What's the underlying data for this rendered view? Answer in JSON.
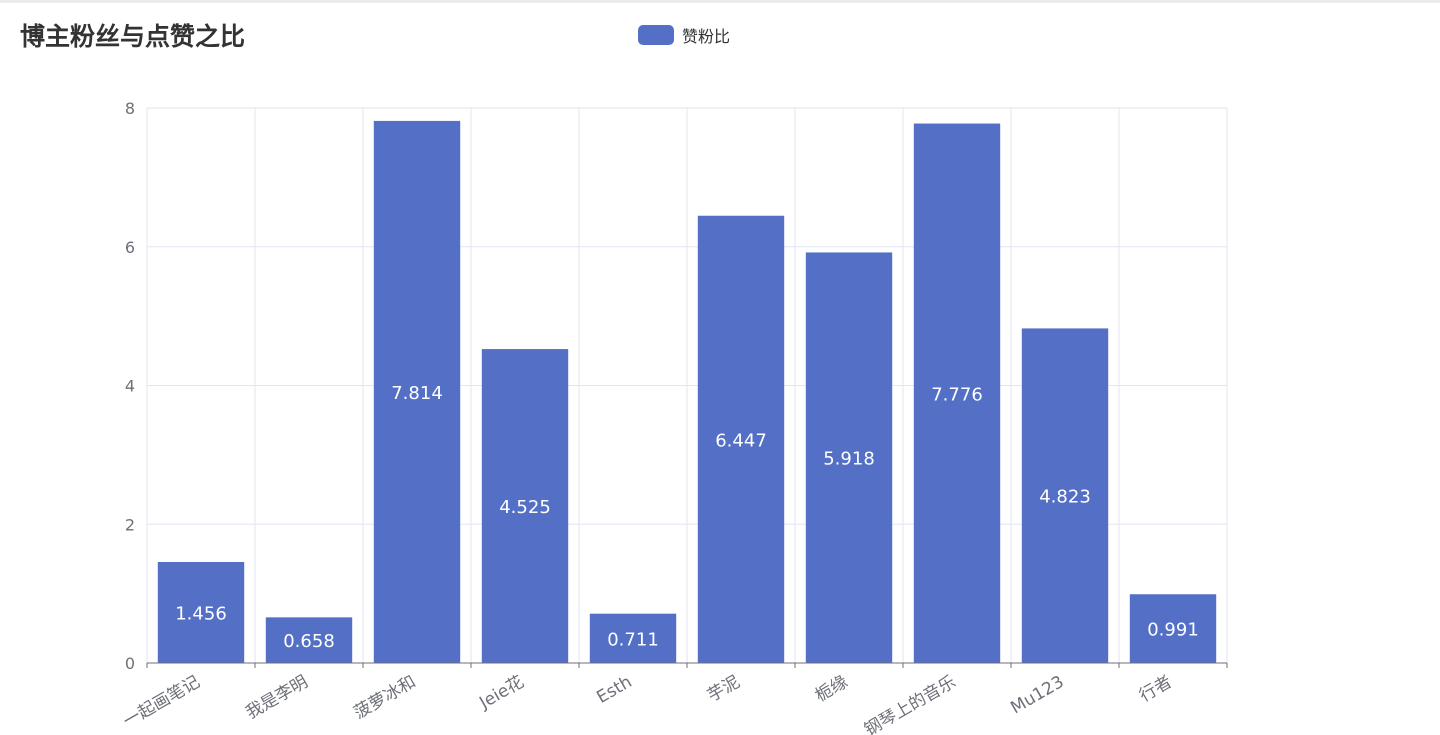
{
  "chart_data": {
    "type": "bar",
    "title": "博主粉丝与点赞之比",
    "categories": [
      "一起画笔记",
      "我是李明",
      "菠萝冰和",
      "Jeie花",
      "Esth",
      "芋泥",
      "栀缘",
      "钢琴上的音乐",
      "Mu123",
      "行者"
    ],
    "series": [
      {
        "name": "赞粉比",
        "values": [
          1.456,
          0.658,
          7.814,
          4.525,
          0.711,
          6.447,
          5.918,
          7.776,
          4.823,
          0.991
        ],
        "color": "#5470c6"
      }
    ],
    "value_labels": [
      "1.456",
      "0.658",
      "7.814",
      "4.525",
      "0.711",
      "6.447",
      "5.918",
      "7.776",
      "4.823",
      "0.991"
    ],
    "ylim": [
      0,
      8
    ],
    "yticks": [
      "0",
      "2",
      "4",
      "6",
      "8"
    ],
    "xlabel": "",
    "ylabel": "",
    "grid": true,
    "legend_position": "top-center",
    "colors": {
      "bar": "#5470c6",
      "grid": "#e0e6f1",
      "axis": "#6e7079",
      "label": "#ffffff"
    }
  }
}
